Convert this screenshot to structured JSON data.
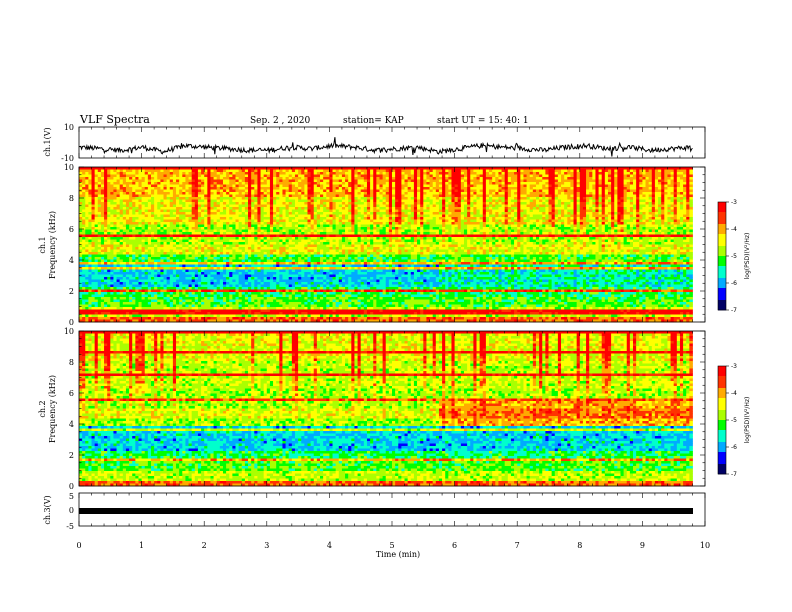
{
  "header": {
    "title": "VLF Spectra",
    "date": "Sep. 2 , 2020",
    "station": "station= KAP",
    "start": "start UT =   15: 40: 1"
  },
  "colors": {
    "spectrum_scale": [
      "#000066",
      "#0000ff",
      "#00aaff",
      "#00ffcc",
      "#00ff00",
      "#aaff00",
      "#ffff00",
      "#ffaa00",
      "#ff3300",
      "#ff0000",
      "#ffeeee"
    ],
    "trace": "#000000"
  },
  "chart_data": [
    {
      "type": "line",
      "name": "ch1-waveform",
      "ylabel": "ch.1(V)",
      "ylim": [
        -10,
        10
      ],
      "yticks": [
        "10",
        "-10"
      ],
      "x_range": [
        0,
        9.8
      ],
      "approx_level": [
        -3,
        -4,
        -5,
        -3,
        -6,
        -2,
        -3,
        -4,
        -5,
        -5,
        -3,
        -4,
        -2,
        -3,
        -5,
        -4,
        -3,
        -6,
        -4,
        -2,
        -3,
        -4,
        -5,
        -3,
        -2,
        -4,
        -3,
        -5,
        -4,
        -3
      ]
    },
    {
      "type": "heatmap",
      "name": "ch1-spectrogram",
      "ylabel": "ch.1\nFrequency (kHz)",
      "ylim": [
        0,
        10
      ],
      "yticks": [
        "0",
        "2",
        "4",
        "6",
        "8",
        "10"
      ],
      "colorbar": {
        "label": "log(PSD)(V²/Hz)",
        "range": [
          -7,
          -3
        ],
        "ticks": [
          "-3",
          "-4",
          "-5",
          "-6",
          "-7"
        ]
      }
    },
    {
      "type": "heatmap",
      "name": "ch2-spectrogram",
      "ylabel": "ch.2\nFrequency (kHz)",
      "ylim": [
        0,
        10
      ],
      "yticks": [
        "0",
        "2",
        "4",
        "6",
        "8",
        "10"
      ],
      "colorbar": {
        "label": "log(PSD)(V²/Hz)",
        "range": [
          -7,
          -3
        ],
        "ticks": [
          "-3",
          "-4",
          "-5",
          "-6",
          "-7"
        ]
      }
    },
    {
      "type": "line",
      "name": "ch3-waveform",
      "ylabel": "ch.3(V)",
      "ylim": [
        -5,
        5
      ],
      "yticks": [
        "5",
        "0",
        "-5"
      ],
      "approx_level": -0.3
    }
  ],
  "x_axis": {
    "label": "Time (min)",
    "range": [
      0,
      10
    ],
    "ticks": [
      "0",
      "1",
      "2",
      "3",
      "4",
      "5",
      "6",
      "7",
      "8",
      "9",
      "10"
    ]
  }
}
